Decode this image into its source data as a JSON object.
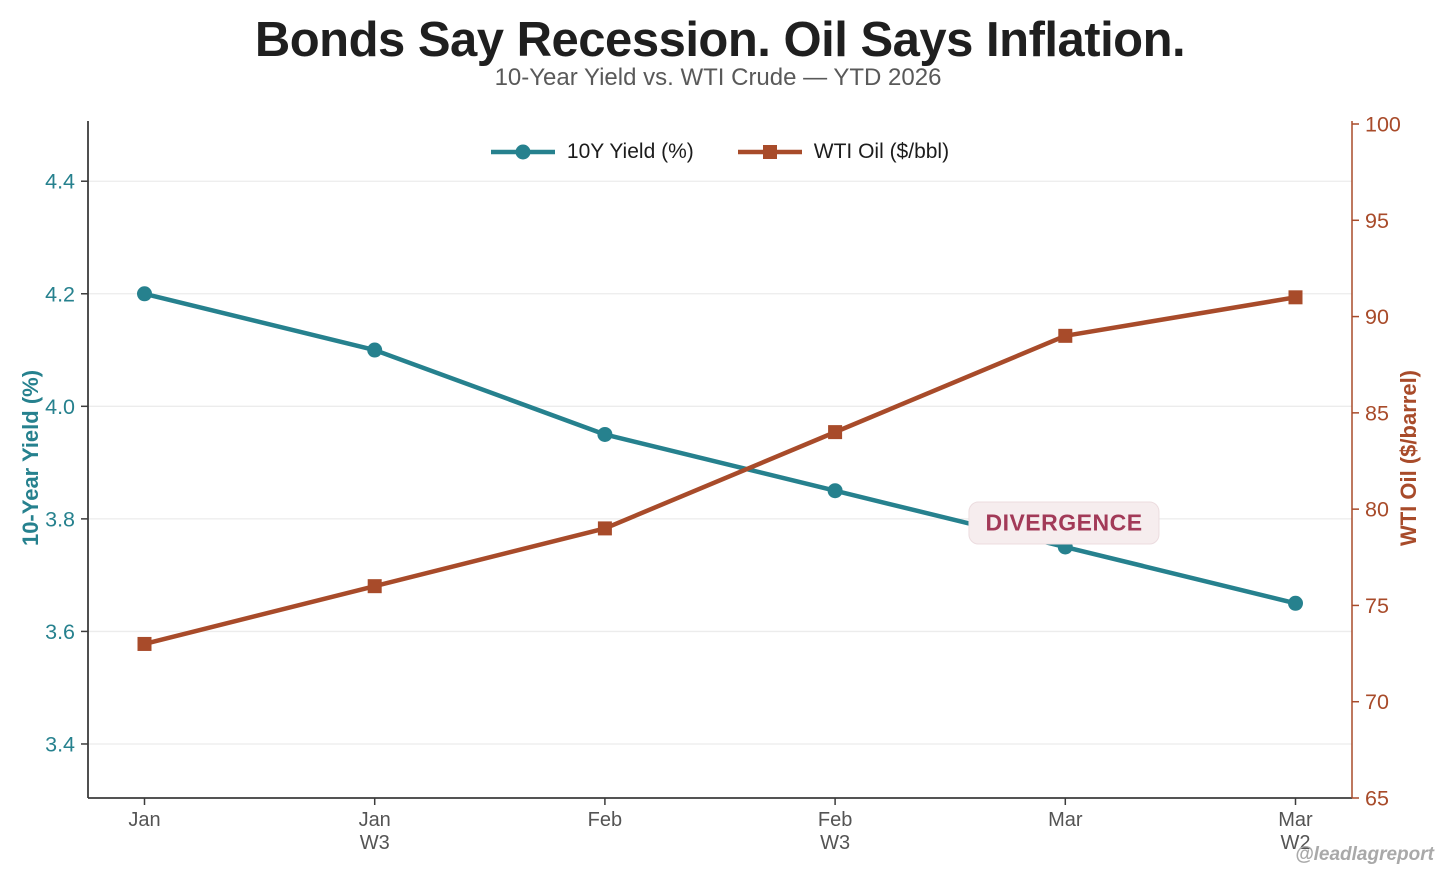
{
  "title": "Bonds Say Recession. Oil Says Inflation.",
  "subtitle": "10-Year Yield vs. WTI Crude — YTD 2026",
  "watermark": "@leadlagreport",
  "annotation": {
    "label": "DIVERGENCE",
    "text_color": "#a23a58",
    "bg_color": "#f6edee",
    "anchor": "above Mar point of 10Y Yield line"
  },
  "colors": {
    "teal_series": "#26818e",
    "rust_series": "#a84b2a",
    "title": "#1f1f1f",
    "subtitle": "#595959",
    "xtick_text": "#545454",
    "spine_dark": "#3c3c3c",
    "grid": "#ececec",
    "watermark": "#a9a9a9"
  },
  "legend": [
    {
      "label": "10Y Yield (%)",
      "marker": "circle",
      "color": "#26818e"
    },
    {
      "label": "WTI Oil ($/bbl)",
      "marker": "square",
      "color": "#a84b2a"
    }
  ],
  "chart_data": {
    "type": "line",
    "title": "Bonds Say Recession. Oil Says Inflation.",
    "subtitle": "10-Year Yield vs. WTI Crude — YTD 2026",
    "categories": [
      "Jan",
      "Jan W3",
      "Feb",
      "Feb W3",
      "Mar",
      "Mar W2"
    ],
    "series": [
      {
        "name": "10Y Yield (%)",
        "axis": "left",
        "color": "#26818e",
        "marker": "circle",
        "values": [
          4.2,
          4.1,
          3.95,
          3.85,
          3.75,
          3.65
        ]
      },
      {
        "name": "WTI Oil ($/bbl)",
        "axis": "right",
        "color": "#a84b2a",
        "marker": "square",
        "values": [
          73,
          76,
          79,
          84,
          89,
          91
        ]
      }
    ],
    "left_axis": {
      "label": "10-Year Yield (%)",
      "ticks": [
        3.4,
        3.6,
        3.8,
        4.0,
        4.2,
        4.4
      ],
      "range": [
        3.304,
        4.507
      ],
      "color": "#26818e"
    },
    "right_axis": {
      "label": "WTI Oil ($/barrel)",
      "ticks": [
        65,
        70,
        75,
        80,
        85,
        90,
        95,
        100
      ],
      "range": [
        65,
        100.156
      ],
      "color": "#a84b2a"
    },
    "grid": true,
    "legend_position": "top-center"
  }
}
